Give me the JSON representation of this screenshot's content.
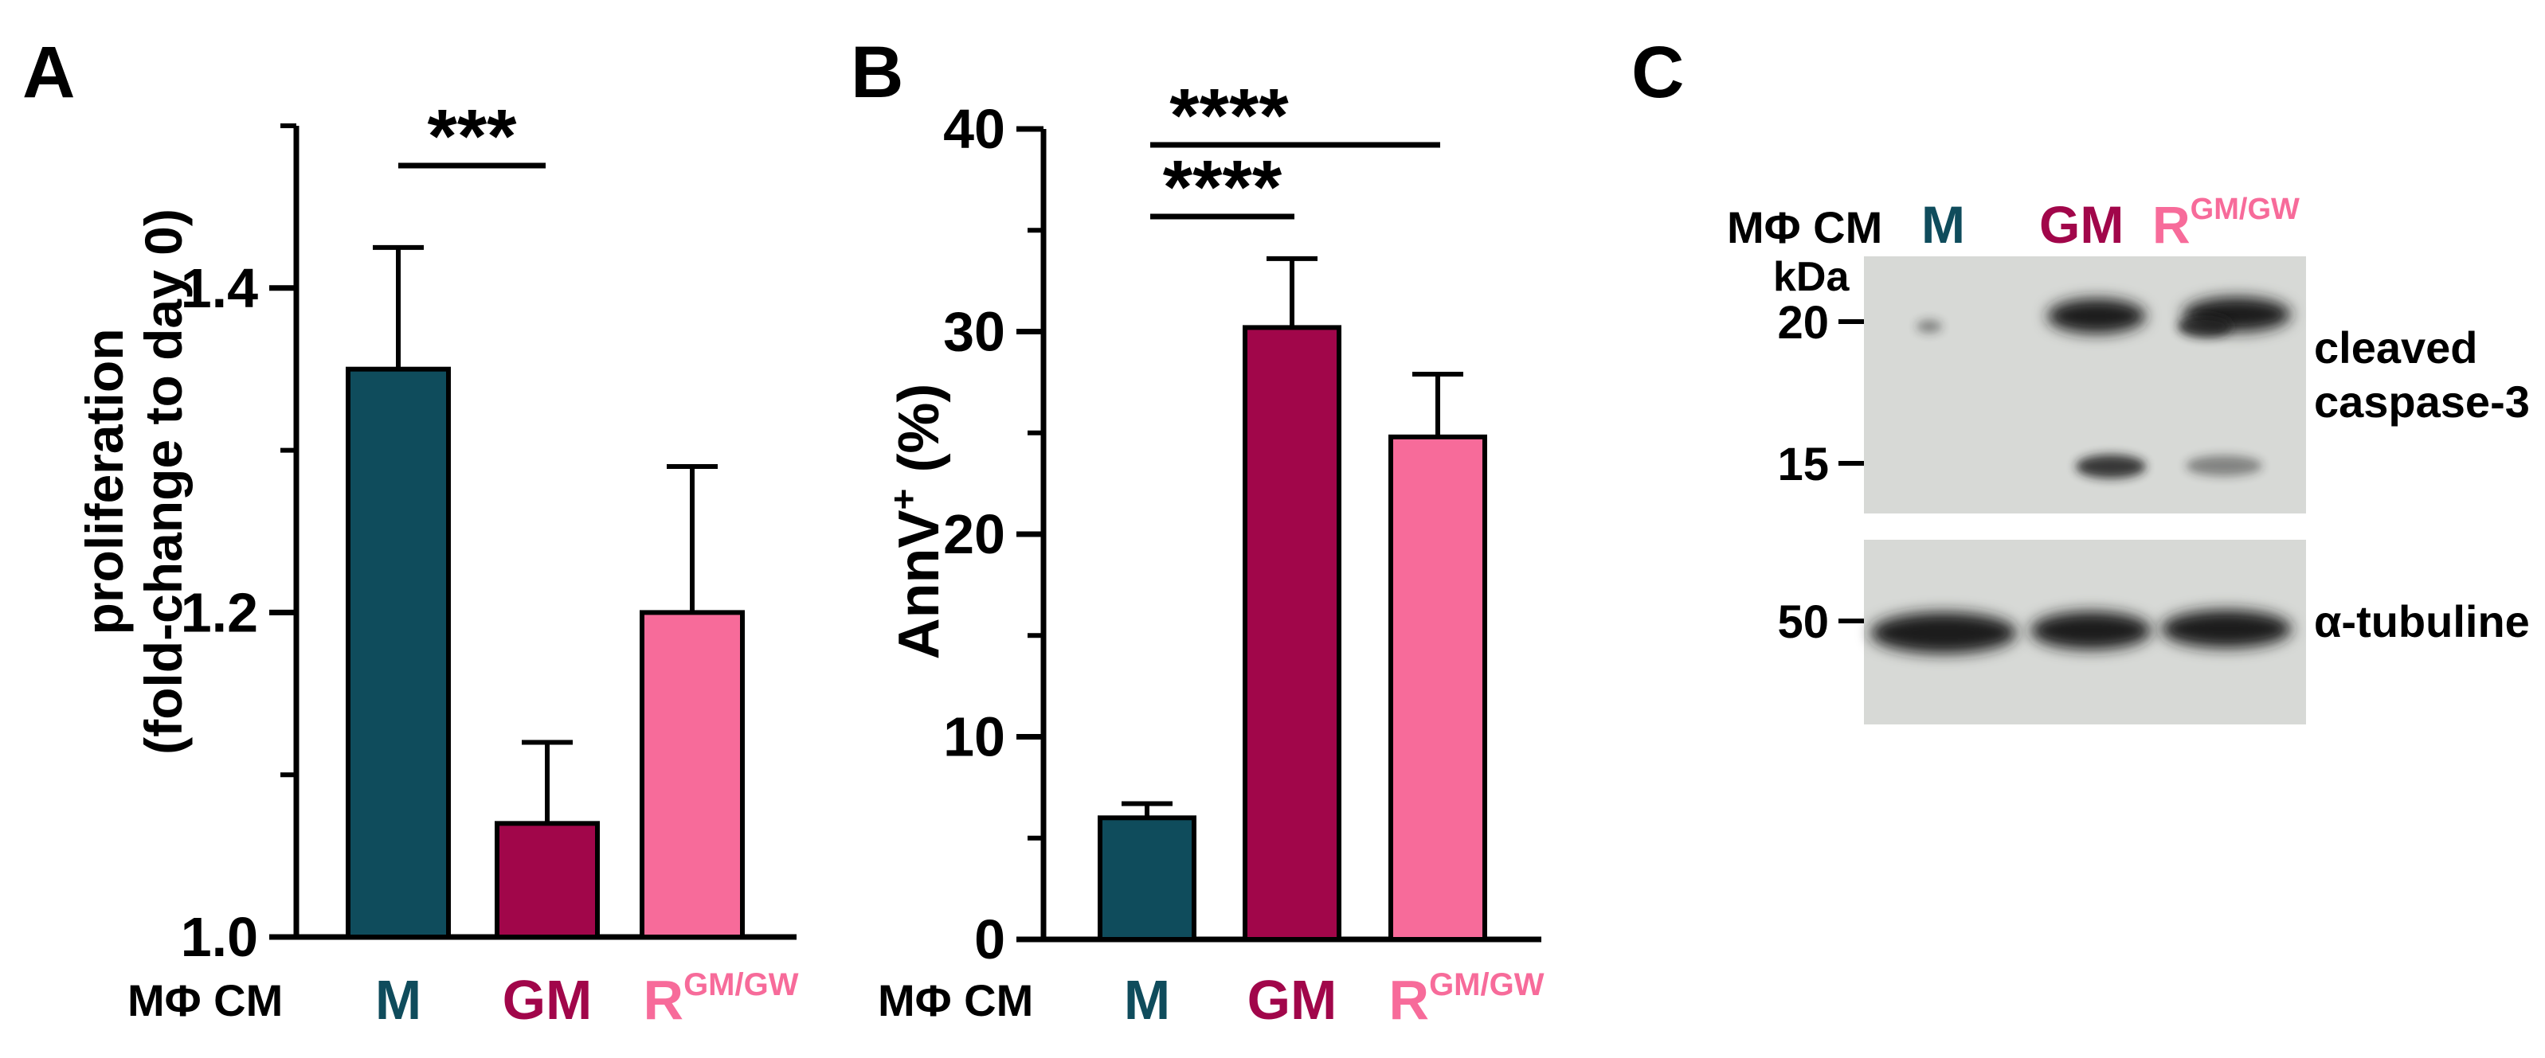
{
  "colors": {
    "M": "#0f4c5c",
    "GM": "#a1064a",
    "R": "#f76b9a",
    "axis": "#000000",
    "blot_background": "#d7d9d6",
    "blot_band": "#1a1e1c"
  },
  "chart_data": [
    {
      "type": "bar",
      "panel": "A",
      "panel_label": "A",
      "ylabel": "proliferation",
      "ylabel2": "(fold-change to day 0)",
      "ylim": [
        1.0,
        1.5
      ],
      "yticks": [
        "1.0",
        "1.2",
        "1.4"
      ],
      "row_label": "MΦ CM",
      "categories": [
        {
          "key": "M",
          "label": "M",
          "sup": ""
        },
        {
          "key": "GM",
          "label": "GM",
          "sup": ""
        },
        {
          "key": "R",
          "label": "R",
          "sup": "GM/GW"
        }
      ],
      "values": [
        1.35,
        1.07,
        1.2
      ],
      "errors": [
        0.075,
        0.05,
        0.09
      ],
      "significance": [
        {
          "from": 0,
          "to": 1,
          "label": "***"
        }
      ]
    },
    {
      "type": "bar",
      "panel": "B",
      "panel_label": "B",
      "ylabel": "AnnV",
      "ylabel_sup": "+",
      "ylabel_suffix": " (%)",
      "ylim": [
        0,
        40
      ],
      "yticks": [
        "0",
        "10",
        "20",
        "30",
        "40"
      ],
      "row_label": "MΦ CM",
      "categories": [
        {
          "key": "M",
          "label": "M",
          "sup": ""
        },
        {
          "key": "GM",
          "label": "GM",
          "sup": ""
        },
        {
          "key": "R",
          "label": "R",
          "sup": "GM/GW"
        }
      ],
      "values": [
        6.0,
        30.2,
        24.8
      ],
      "errors": [
        0.7,
        3.4,
        3.1
      ],
      "significance": [
        {
          "from": 0,
          "to": 1,
          "label": "****"
        },
        {
          "from": 0,
          "to": 2,
          "label": "****"
        }
      ]
    }
  ],
  "blot": {
    "panel_label": "C",
    "row_label": "MΦ CM",
    "kda_label": "kDa",
    "lanes": [
      {
        "key": "M",
        "label": "M",
        "sup": ""
      },
      {
        "key": "GM",
        "label": "GM",
        "sup": ""
      },
      {
        "key": "R",
        "label": "R",
        "sup": "GM/GW"
      }
    ],
    "markers": [
      "20",
      "15",
      "50"
    ],
    "labels": {
      "cleaved_line1": "cleaved",
      "cleaved_line2": "caspase-3",
      "tubulin": "α-tubuline"
    }
  }
}
